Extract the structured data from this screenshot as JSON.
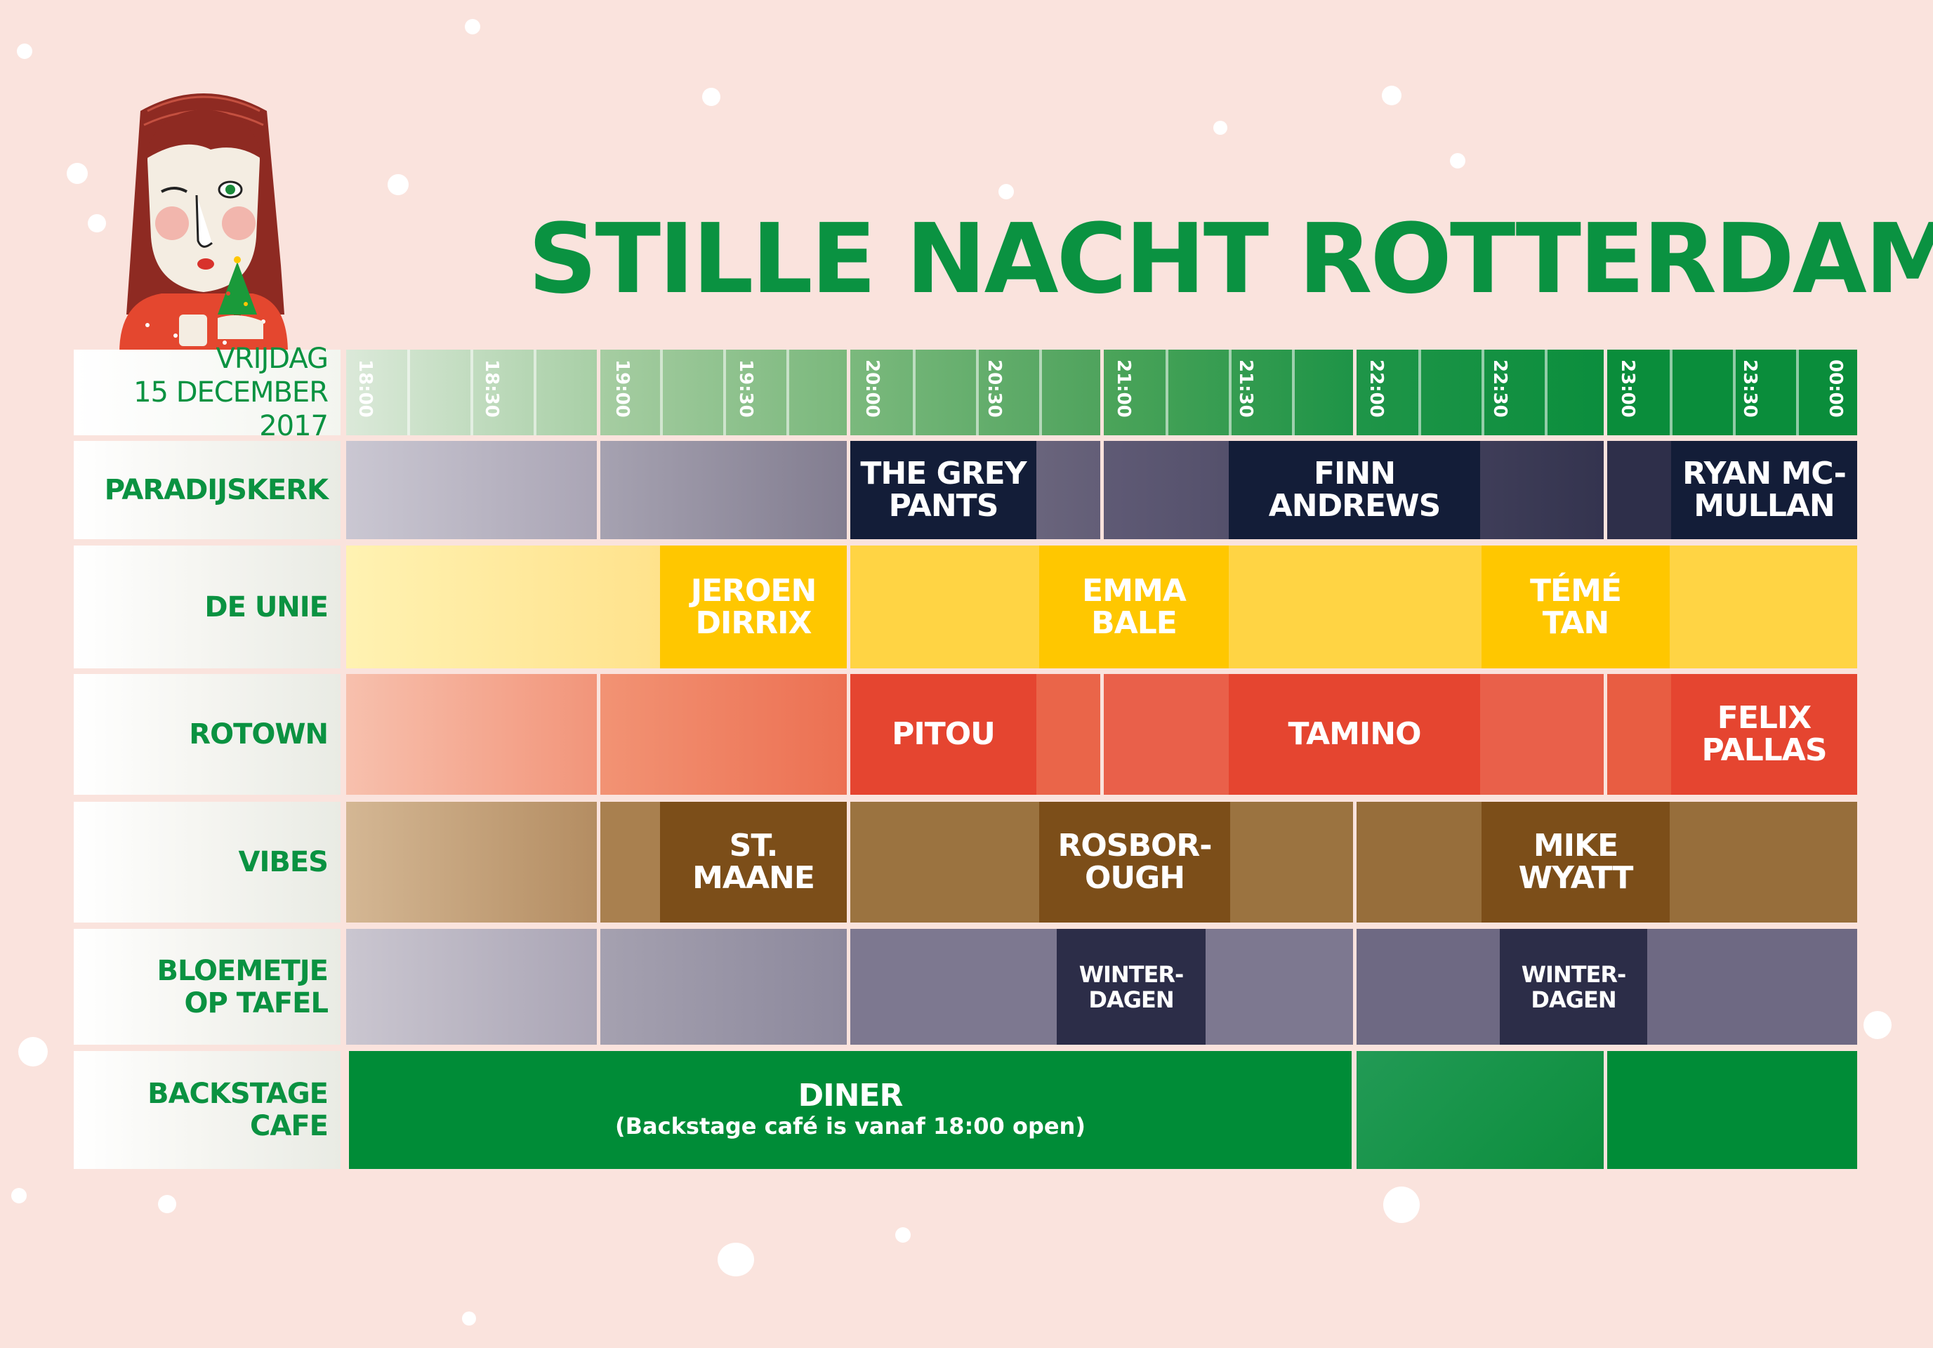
{
  "title": "STILLE  NACHT ROTTERDAM",
  "date": {
    "day": "VRIJDAG",
    "full": "15 DECEMBER 2017"
  },
  "timeline": [
    "18:00",
    "18:30",
    "19:00",
    "19:30",
    "20:00",
    "20:30",
    "21:00",
    "21:30",
    "22:00",
    "22:30",
    "23:00",
    "23:30",
    "00:00"
  ],
  "venues": [
    {
      "name": "PARADIJSKERK",
      "acts": [
        {
          "name": "THE GREY PANTS",
          "start": "20:00",
          "end": "20:45"
        },
        {
          "name": "FINN ANDREWS",
          "start": "21:30",
          "end": "22:30"
        },
        {
          "name": "RYAN MC-MULLAN",
          "start": "23:15",
          "end": "00:00"
        }
      ]
    },
    {
      "name": "DE UNIE",
      "acts": [
        {
          "name": "JEROEN DIRRIX",
          "start": "19:15",
          "end": "20:00"
        },
        {
          "name": "EMMA BALE",
          "start": "20:45",
          "end": "21:30"
        },
        {
          "name": "TÉMÉ TAN",
          "start": "22:15",
          "end": "23:00"
        }
      ]
    },
    {
      "name": "ROTOWN",
      "acts": [
        {
          "name": "PITOU",
          "start": "20:00",
          "end": "20:45"
        },
        {
          "name": "TAMINO",
          "start": "21:30",
          "end": "22:30"
        },
        {
          "name": "FELIX PALLAS",
          "start": "23:15",
          "end": "00:00"
        }
      ]
    },
    {
      "name": "VIBES",
      "acts": [
        {
          "name": "ST. MAANE",
          "start": "19:15",
          "end": "20:00"
        },
        {
          "name": "ROSBOR-OUGH",
          "start": "20:45",
          "end": "21:30"
        },
        {
          "name": "MIKE WYATT",
          "start": "22:15",
          "end": "23:00"
        }
      ]
    },
    {
      "name": "BLOEMETJE OP TAFEL",
      "acts": [
        {
          "name": "WINTER-DAGEN",
          "start": "20:50",
          "end": "21:25"
        },
        {
          "name": "WINTER-DAGEN",
          "start": "22:20",
          "end": "22:55"
        }
      ]
    },
    {
      "name": "BACKSTAGE CAFE",
      "acts": [
        {
          "name": "DINER",
          "note": "(Backstage café is vanaf 18:00 open)",
          "start": "18:00",
          "end": "22:00"
        }
      ]
    }
  ],
  "labels": {
    "v0": "PARADIJSKERK",
    "v1": "DE UNIE",
    "v2": "ROTOWN",
    "v3": "VIBES",
    "v4a": "BLOEMETJE",
    "v4b": "OP TAFEL",
    "v5a": "BACKSTAGE",
    "v5b": "CAFE"
  },
  "acts": {
    "grey_pants_1": "THE GREY",
    "grey_pants_2": "PANTS",
    "finn_1": "FINN",
    "finn_2": "ANDREWS",
    "ryan_1": "RYAN MC-",
    "ryan_2": "MULLAN",
    "jeroen_1": "JEROEN",
    "jeroen_2": "DIRRIX",
    "emma_1": "EMMA",
    "emma_2": "BALE",
    "teme_1": "TÉMÉ",
    "teme_2": "TAN",
    "pitou": "PITOU",
    "tamino": "TAMINO",
    "felix_1": "FELIX",
    "felix_2": "PALLAS",
    "maane_1": "ST.",
    "maane_2": "MAANE",
    "rosb_1": "ROSBOR-",
    "rosb_2": "OUGH",
    "mike_1": "MIKE",
    "mike_2": "WYATT",
    "winter_a1": "WINTER-",
    "winter_a2": "DAGEN",
    "winter_b1": "WINTER-",
    "winter_b2": "DAGEN",
    "diner": "DINER",
    "diner_note": "(Backstage café is vanaf 18:00 open)"
  },
  "colors": {
    "background": "#fae3dd",
    "title_green": "#0a9241",
    "paradijskerk_dark": "#131d38",
    "de_unie_yellow": "#ffc700",
    "rotown_red": "#e54530",
    "vibes_brown": "#7c4e19",
    "bloemetje_dark": "#2c2d48",
    "backstage_green": "#008c37"
  }
}
